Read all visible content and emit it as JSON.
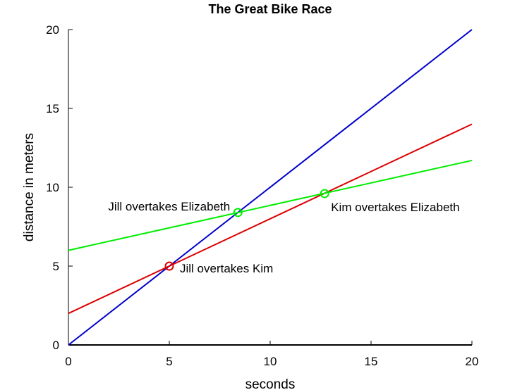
{
  "chart_data": {
    "type": "line",
    "title": "The Great Bike Race",
    "xlabel": "seconds",
    "ylabel": "distance in meters",
    "xlim": [
      0,
      20
    ],
    "ylim": [
      0,
      20
    ],
    "xticks": [
      0,
      5,
      10,
      15,
      20
    ],
    "yticks": [
      0,
      5,
      10,
      15,
      20
    ],
    "grid": false,
    "series": [
      {
        "color": "#0000cc",
        "x": [
          0,
          20
        ],
        "y": [
          0,
          20
        ]
      },
      {
        "color": "#dd0000",
        "x": [
          0,
          20
        ],
        "y": [
          2,
          14
        ]
      },
      {
        "color": "#00ee00",
        "x": [
          0,
          20
        ],
        "y": [
          6,
          11.7
        ]
      }
    ],
    "markers": [
      {
        "x": 5,
        "y": 5,
        "color": "#dd0000"
      },
      {
        "x": 8.4,
        "y": 8.4,
        "color": "#00ee00"
      },
      {
        "x": 12.7,
        "y": 9.6,
        "color": "#00ee00"
      }
    ],
    "annotations": [
      {
        "text": "Jill overtakes Kim",
        "x": 5,
        "y": 5,
        "anchor": "right"
      },
      {
        "text": "Jill overtakes Elizabeth",
        "x": 8.4,
        "y": 8.4,
        "anchor": "left"
      },
      {
        "text": "Kim overtakes Elizabeth",
        "x": 12.7,
        "y": 9.6,
        "anchor": "below-right"
      }
    ]
  }
}
